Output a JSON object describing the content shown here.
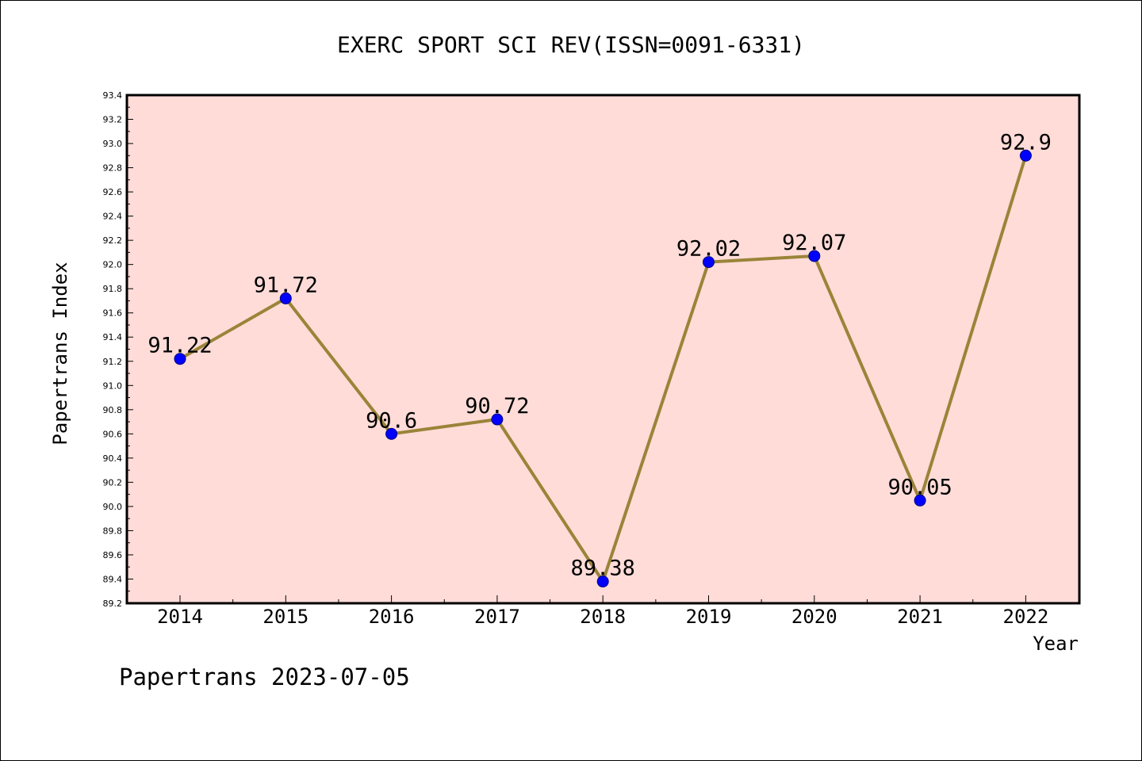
{
  "chart_data": {
    "type": "line",
    "title": "EXERC SPORT SCI REV(ISSN=0091-6331)",
    "xlabel": "Year",
    "ylabel": "Papertrans Index",
    "x": [
      "2014",
      "2015",
      "2016",
      "2017",
      "2018",
      "2019",
      "2020",
      "2021",
      "2022"
    ],
    "series": [
      {
        "values": [
          91.22,
          91.72,
          90.6,
          90.72,
          89.38,
          92.02,
          92.07,
          90.05,
          92.9
        ],
        "labels": [
          "91.22",
          "91.72",
          "90.6",
          "90.72",
          "89.38",
          "92.02",
          "92.07",
          "90.05",
          "92.9"
        ]
      }
    ],
    "ylim": [
      89.2,
      93.4
    ],
    "y_major_step": 0.2,
    "y_ticks": [
      "89.2",
      "89.4",
      "89.6",
      "89.8",
      "90.0",
      "90.2",
      "90.4",
      "90.6",
      "90.8",
      "91.0",
      "91.2",
      "91.4",
      "91.6",
      "91.8",
      "92.0",
      "92.2",
      "92.4",
      "92.6",
      "92.8",
      "93.0",
      "93.2",
      "93.4"
    ],
    "grid": false,
    "colors": {
      "plot_background": "#ffdcd8",
      "line": "#9a8438",
      "marker": "#0000ff",
      "marker_edge": "#000080"
    }
  },
  "footer": {
    "caption": "Papertrans 2023-07-05"
  }
}
